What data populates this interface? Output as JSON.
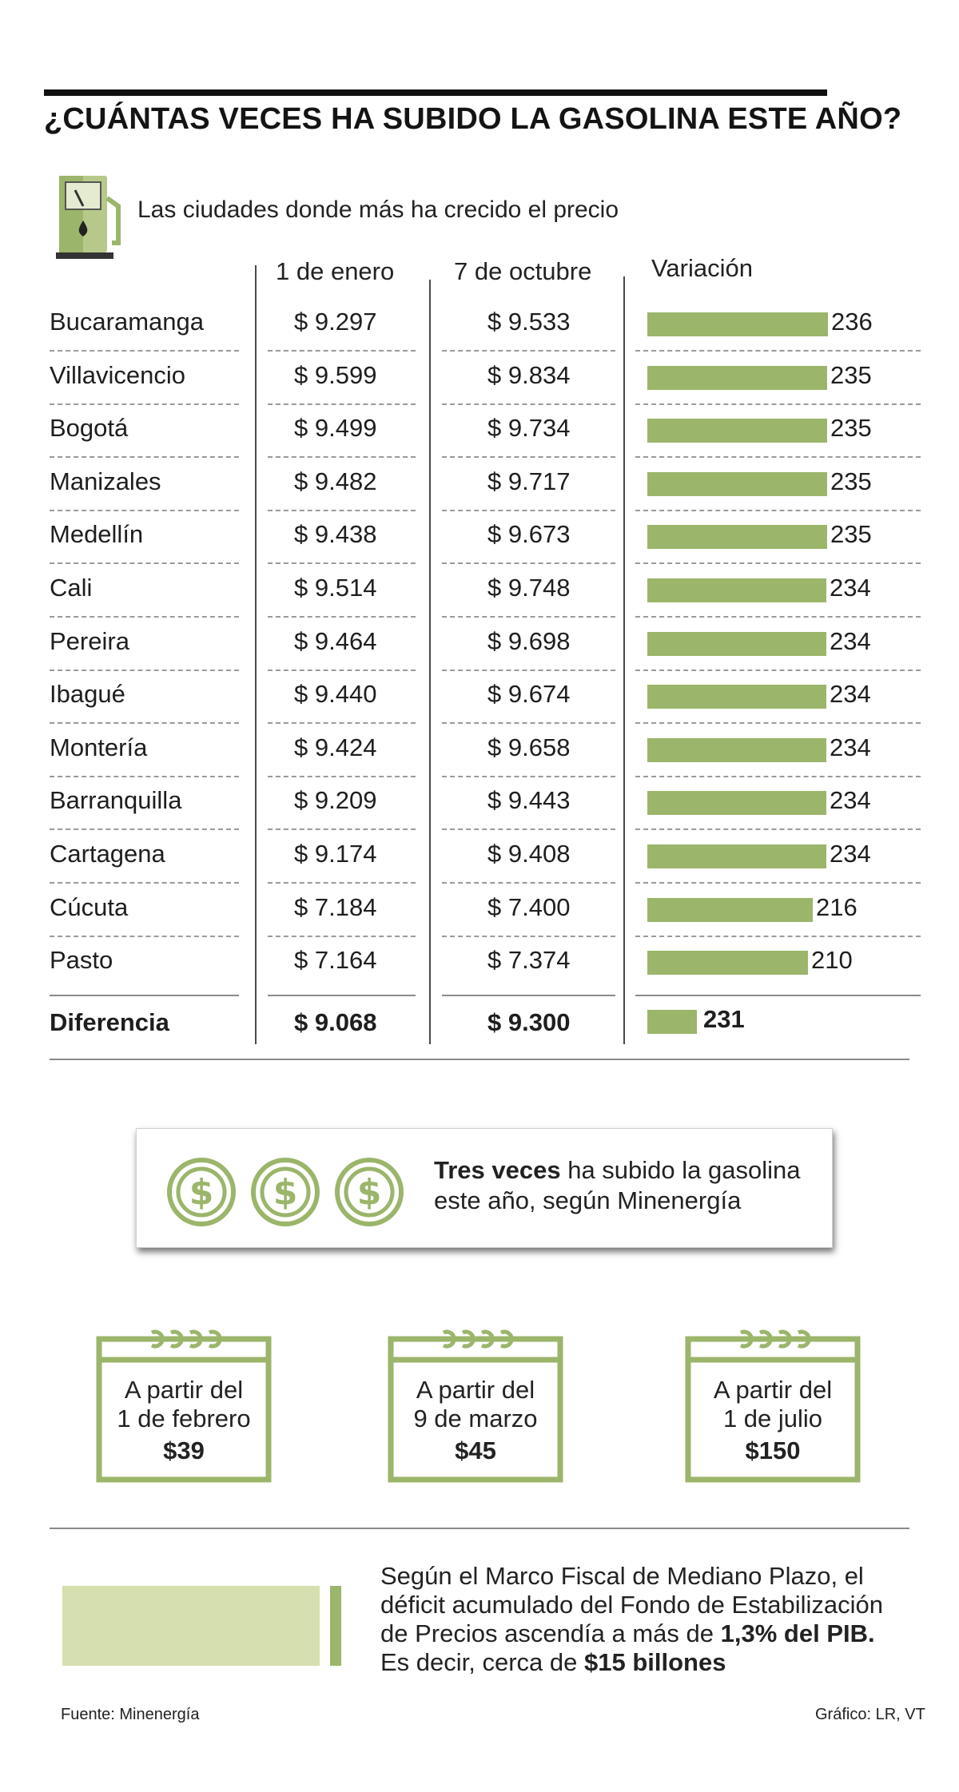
{
  "title": "¿CUÁNTAS VECES HA SUBIDO LA GASOLINA ESTE AÑO?",
  "subtitle": "Las ciudades donde más ha crecido el precio",
  "columns": {
    "jan": "1 de enero",
    "oct": "7 de octubre",
    "var": "Variación"
  },
  "chart_data": {
    "type": "table",
    "headers": [
      "",
      "1 de enero",
      "7 de octubre",
      "Variación"
    ],
    "rows": [
      {
        "city": "Bucaramanga",
        "jan": "$ 9.297",
        "oct": "$ 9.533",
        "variation": 236
      },
      {
        "city": "Villavicencio",
        "jan": "$ 9.599",
        "oct": "$ 9.834",
        "variation": 235
      },
      {
        "city": "Bogotá",
        "jan": "$ 9.499",
        "oct": "$ 9.734",
        "variation": 235
      },
      {
        "city": "Manizales",
        "jan": "$ 9.482",
        "oct": "$ 9.717",
        "variation": 235
      },
      {
        "city": "Medellín",
        "jan": "$ 9.438",
        "oct": "$ 9.673",
        "variation": 235
      },
      {
        "city": "Cali",
        "jan": "$ 9.514",
        "oct": "$ 9.748",
        "variation": 234
      },
      {
        "city": "Pereira",
        "jan": "$ 9.464",
        "oct": "$ 9.698",
        "variation": 234
      },
      {
        "city": "Ibagué",
        "jan": "$ 9.440",
        "oct": "$ 9.674",
        "variation": 234
      },
      {
        "city": "Montería",
        "jan": "$ 9.424",
        "oct": "$ 9.658",
        "variation": 234
      },
      {
        "city": "Barranquilla",
        "jan": "$ 9.209",
        "oct": "$ 9.443",
        "variation": 234
      },
      {
        "city": "Cartagena",
        "jan": "$ 9.174",
        "oct": "$ 9.408",
        "variation": 234
      },
      {
        "city": "Cúcuta",
        "jan": "$ 7.184",
        "oct": "$ 7.400",
        "variation": 216
      },
      {
        "city": "Pasto",
        "jan": "$ 7.164",
        "oct": "$ 7.374",
        "variation": 210
      }
    ],
    "summary": {
      "city": "Diferencia",
      "jan": "$ 9.068",
      "oct": "$ 9.300",
      "variation": 231
    },
    "bar_scale_max": 236,
    "bar_color": "#9bb56a"
  },
  "callout": {
    "bold": "Tres veces",
    "line1_rest": " ha subido la gasolina",
    "line2": "este año, según Minenergía",
    "icon": "dollar-coin-icon",
    "icon_count": 3
  },
  "increases": [
    {
      "line1": "A partir del",
      "line2": "1 de febrero",
      "amount": "$39"
    },
    {
      "line1": "A partir del",
      "line2": "9 de marzo",
      "amount": "$45"
    },
    {
      "line1": "A partir del",
      "line2": "1 de julio",
      "amount": "$150"
    }
  ],
  "note": {
    "line1": "Según el Marco Fiscal de Mediano Plazo, el",
    "line2": "déficit acumulado del Fondo de Estabilización",
    "line3_start": "de Precios ascendía a más de ",
    "line3_bold": "1,3% del PIB.",
    "line4_start": "Es decir, cerca de ",
    "line4_bold": "$15 billones"
  },
  "footer": {
    "source": "Fuente: Minenergía",
    "credit": "Gráfico: LR, VT"
  },
  "colors": {
    "accent": "#9bb56a",
    "accent_light": "#d5e0ae",
    "text": "#1e1e1e"
  }
}
